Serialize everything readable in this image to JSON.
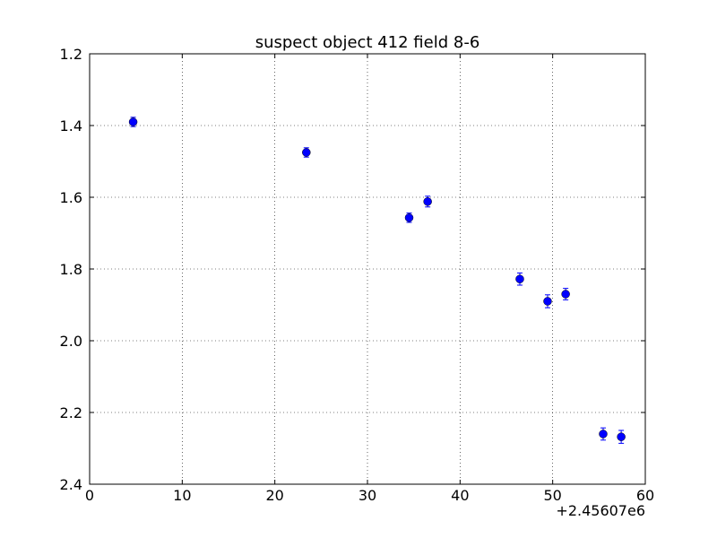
{
  "chart_data": {
    "type": "errorbar_scatter",
    "title": "suspect object 412 field 8-6",
    "x": [
      4.7,
      23.4,
      34.5,
      36.5,
      46.45,
      49.45,
      51.4,
      55.45,
      57.4
    ],
    "values": [
      1.39,
      1.475,
      1.657,
      1.612,
      1.828,
      1.89,
      1.87,
      2.26,
      2.268
    ],
    "errors": [
      0.013,
      0.013,
      0.013,
      0.015,
      0.017,
      0.018,
      0.016,
      0.017,
      0.018
    ],
    "color": "#0000ff",
    "xlim": [
      0,
      60
    ],
    "xticks": [
      0,
      10,
      20,
      30,
      40,
      50,
      60
    ],
    "x_offset_label": "+2.45607e6",
    "ylim": [
      2.4,
      1.2
    ],
    "yticks": [
      {
        "value": 1.2,
        "label": "1.2"
      },
      {
        "value": 1.4,
        "label": "1.4"
      },
      {
        "value": 1.6,
        "label": "1.6"
      },
      {
        "value": 1.8,
        "label": "1.8"
      },
      {
        "value": 2,
        "label": "2.0"
      },
      {
        "value": 2.2,
        "label": "2.2"
      },
      {
        "value": 2.4,
        "label": "2.4"
      }
    ],
    "grid": true
  }
}
